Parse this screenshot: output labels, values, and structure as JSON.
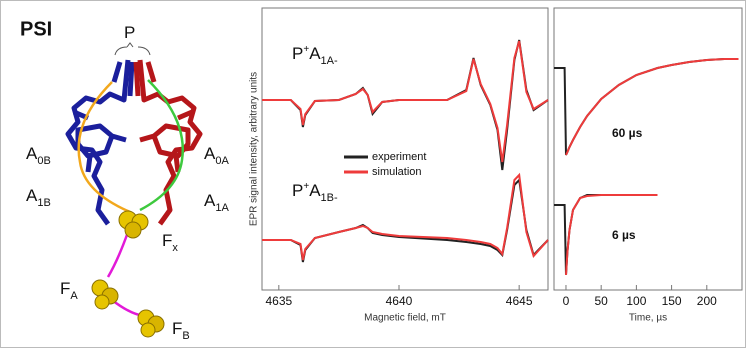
{
  "diagram": {
    "title": "PSI",
    "labels": [
      {
        "base": "P"
      },
      {
        "base": "A",
        "sub": "0B"
      },
      {
        "base": "A",
        "sub": "0A"
      },
      {
        "base": "A",
        "sub": "1B"
      },
      {
        "base": "A",
        "sub": "1A"
      },
      {
        "base": "F",
        "sub": "x"
      },
      {
        "base": "F",
        "sub": "A"
      },
      {
        "base": "F",
        "sub": "B"
      }
    ]
  },
  "chart_data": [
    {
      "type": "line",
      "x_label": "Magnetic field, mT",
      "y_label": "EPR signal intensity, arbitrary units",
      "xlim": [
        4634.3,
        4646.2
      ],
      "xticks": [
        4635,
        4640,
        4645
      ],
      "ylim": [
        0,
        282
      ],
      "annotations": [
        {
          "base": "P",
          "sup": "+",
          "base2": "A",
          "sub": "1A-"
        },
        {
          "base": "P",
          "sup": "+",
          "base2": "A",
          "sub": "1B-"
        }
      ],
      "x": [
        4634.3,
        4635.5,
        4635.9,
        4636.0,
        4636.1,
        4636.5,
        4637.5,
        4638.2,
        4638.5,
        4638.7,
        4638.9,
        4639.3,
        4640,
        4642,
        4642.8,
        4643.1,
        4643.4,
        4643.8,
        4644.1,
        4644.3,
        4644.5,
        4644.8,
        4645.0,
        4645.3,
        4645.6,
        4646.2
      ],
      "series": [
        {
          "name": "experiment",
          "color": "#222222",
          "values": [
            190,
            190,
            180,
            163,
            175,
            189,
            190,
            196,
            202,
            195,
            176,
            188,
            190,
            190,
            200,
            232,
            205,
            185,
            160,
            120,
            160,
            230,
            250,
            200,
            180,
            190
          ]
        },
        {
          "name": "simulation",
          "color": "#ee3b3b",
          "values": [
            190,
            190,
            181,
            165,
            176,
            189,
            190,
            196,
            201,
            195,
            178,
            188,
            190,
            190,
            199,
            231,
            206,
            186,
            162,
            128,
            165,
            232,
            249,
            198,
            181,
            190
          ]
        },
        {
          "color": "#222222",
          "values": [
            50,
            50,
            45,
            28,
            40,
            52,
            58,
            62,
            65,
            62,
            57,
            55,
            53,
            50,
            48,
            47,
            46,
            44,
            40,
            35,
            60,
            105,
            110,
            60,
            35,
            50
          ]
        },
        {
          "color": "#ee3b3b",
          "values": [
            50,
            50,
            46,
            30,
            41,
            52,
            58,
            62,
            64,
            62,
            58,
            56,
            54,
            52,
            50,
            49,
            48,
            46,
            42,
            36,
            62,
            110,
            115,
            58,
            34,
            50
          ]
        }
      ]
    },
    {
      "type": "line",
      "x_label": "Time, µs",
      "xlim": [
        -17,
        250
      ],
      "xticks": [
        0,
        50,
        100,
        150,
        200
      ],
      "ylim": [
        0,
        282
      ],
      "annotations": [
        "60 µs",
        "6 µs"
      ],
      "x": [
        -17,
        -2,
        0,
        2,
        5,
        10,
        20,
        30,
        50,
        75,
        100,
        130,
        150,
        175,
        200,
        225,
        245
      ],
      "series": [
        {
          "color": "#222222",
          "values": [
            222,
            222,
            135,
            138,
            143,
            150,
            163,
            174,
            191,
            205,
            215,
            222,
            225,
            228,
            230,
            231,
            231
          ]
        },
        {
          "color": "#ee3b3b",
          "values": [
            null,
            null,
            135,
            138,
            143,
            150,
            163,
            174,
            191,
            205,
            215,
            222,
            225,
            228,
            230,
            231,
            231
          ]
        },
        {
          "color": "#222222",
          "values": [
            85,
            85,
            15,
            38,
            60,
            80,
            92,
            95,
            95,
            95,
            95,
            95,
            null,
            null,
            null,
            null,
            null
          ]
        },
        {
          "color": "#ee3b3b",
          "values": [
            null,
            null,
            15,
            38,
            60,
            80,
            92,
            94,
            95,
            95,
            95,
            95,
            null,
            null,
            null,
            null,
            null
          ]
        }
      ]
    }
  ]
}
